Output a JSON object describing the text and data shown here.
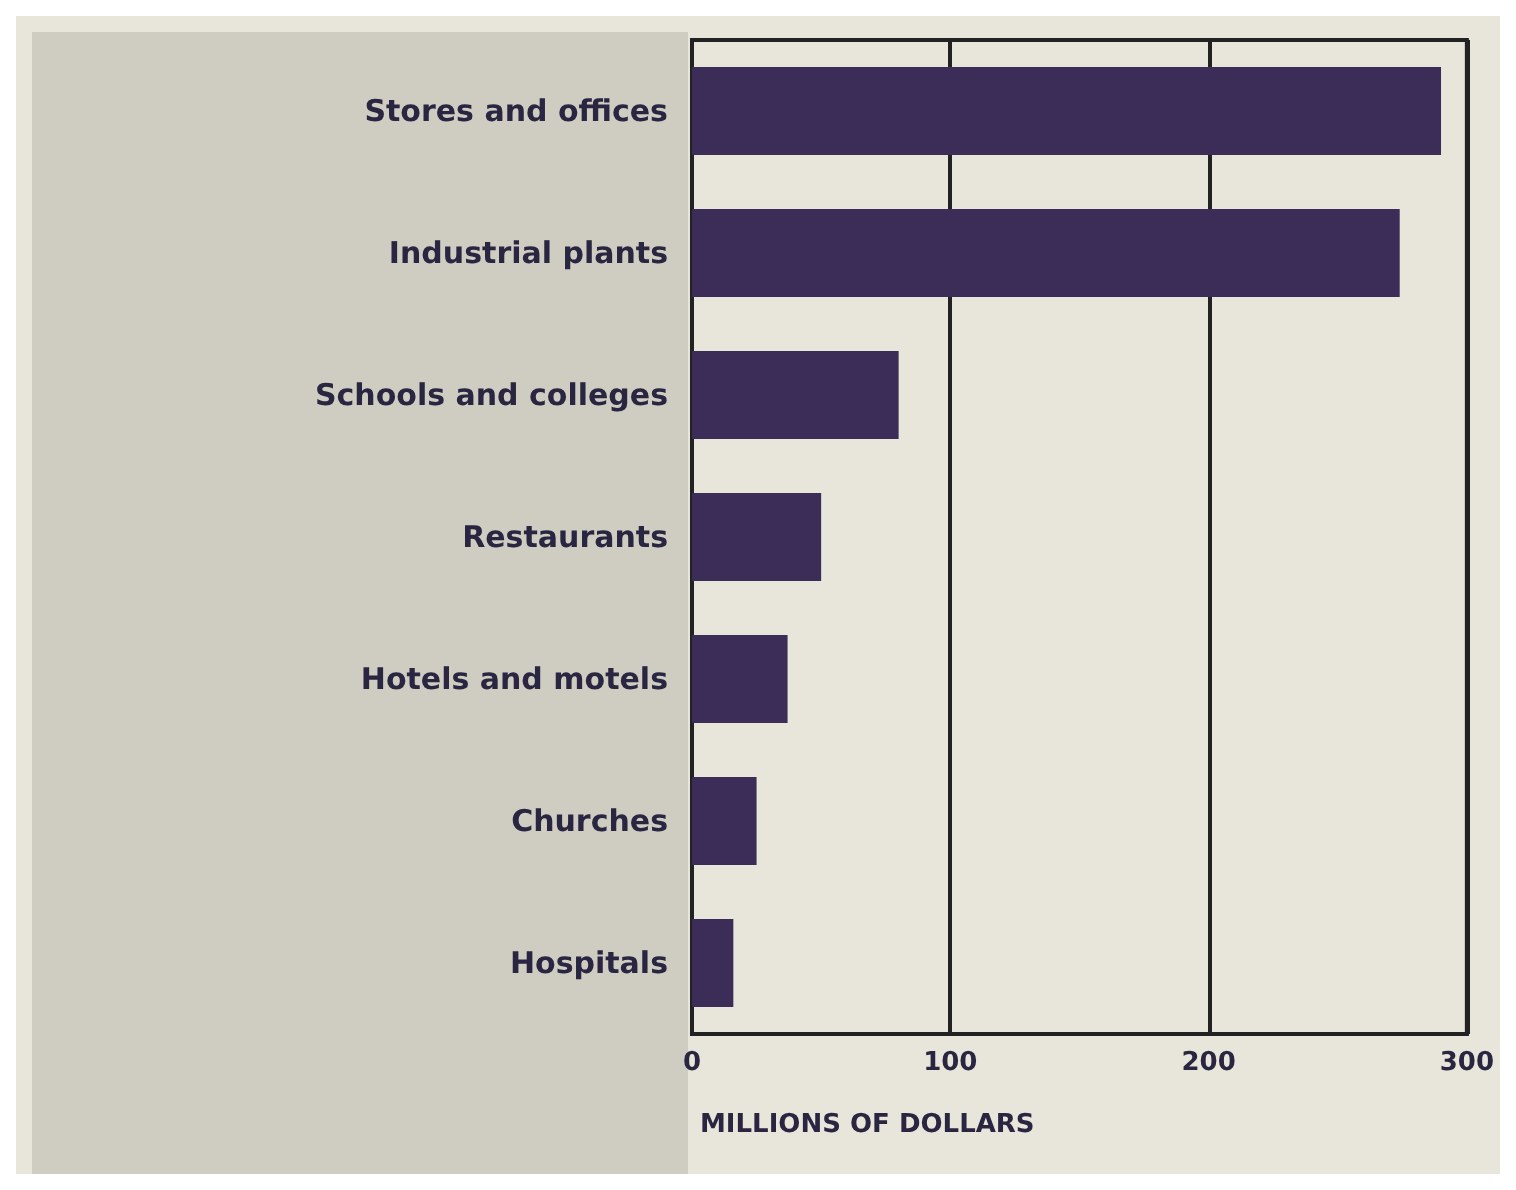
{
  "chart_data": {
    "type": "bar",
    "orientation": "horizontal",
    "categories": [
      "Stores and offices",
      "Industrial plants",
      "Schools and colleges",
      "Restaurants",
      "Hotels and motels",
      "Churches",
      "Hospitals"
    ],
    "values": [
      290,
      274,
      80,
      50,
      37,
      25,
      16
    ],
    "color": "#3b2d58",
    "xlabel": "MILLIONS OF DOLLARS",
    "xlim": [
      0,
      300
    ],
    "xticks": [
      0,
      100,
      200,
      300
    ],
    "grid": "x"
  }
}
